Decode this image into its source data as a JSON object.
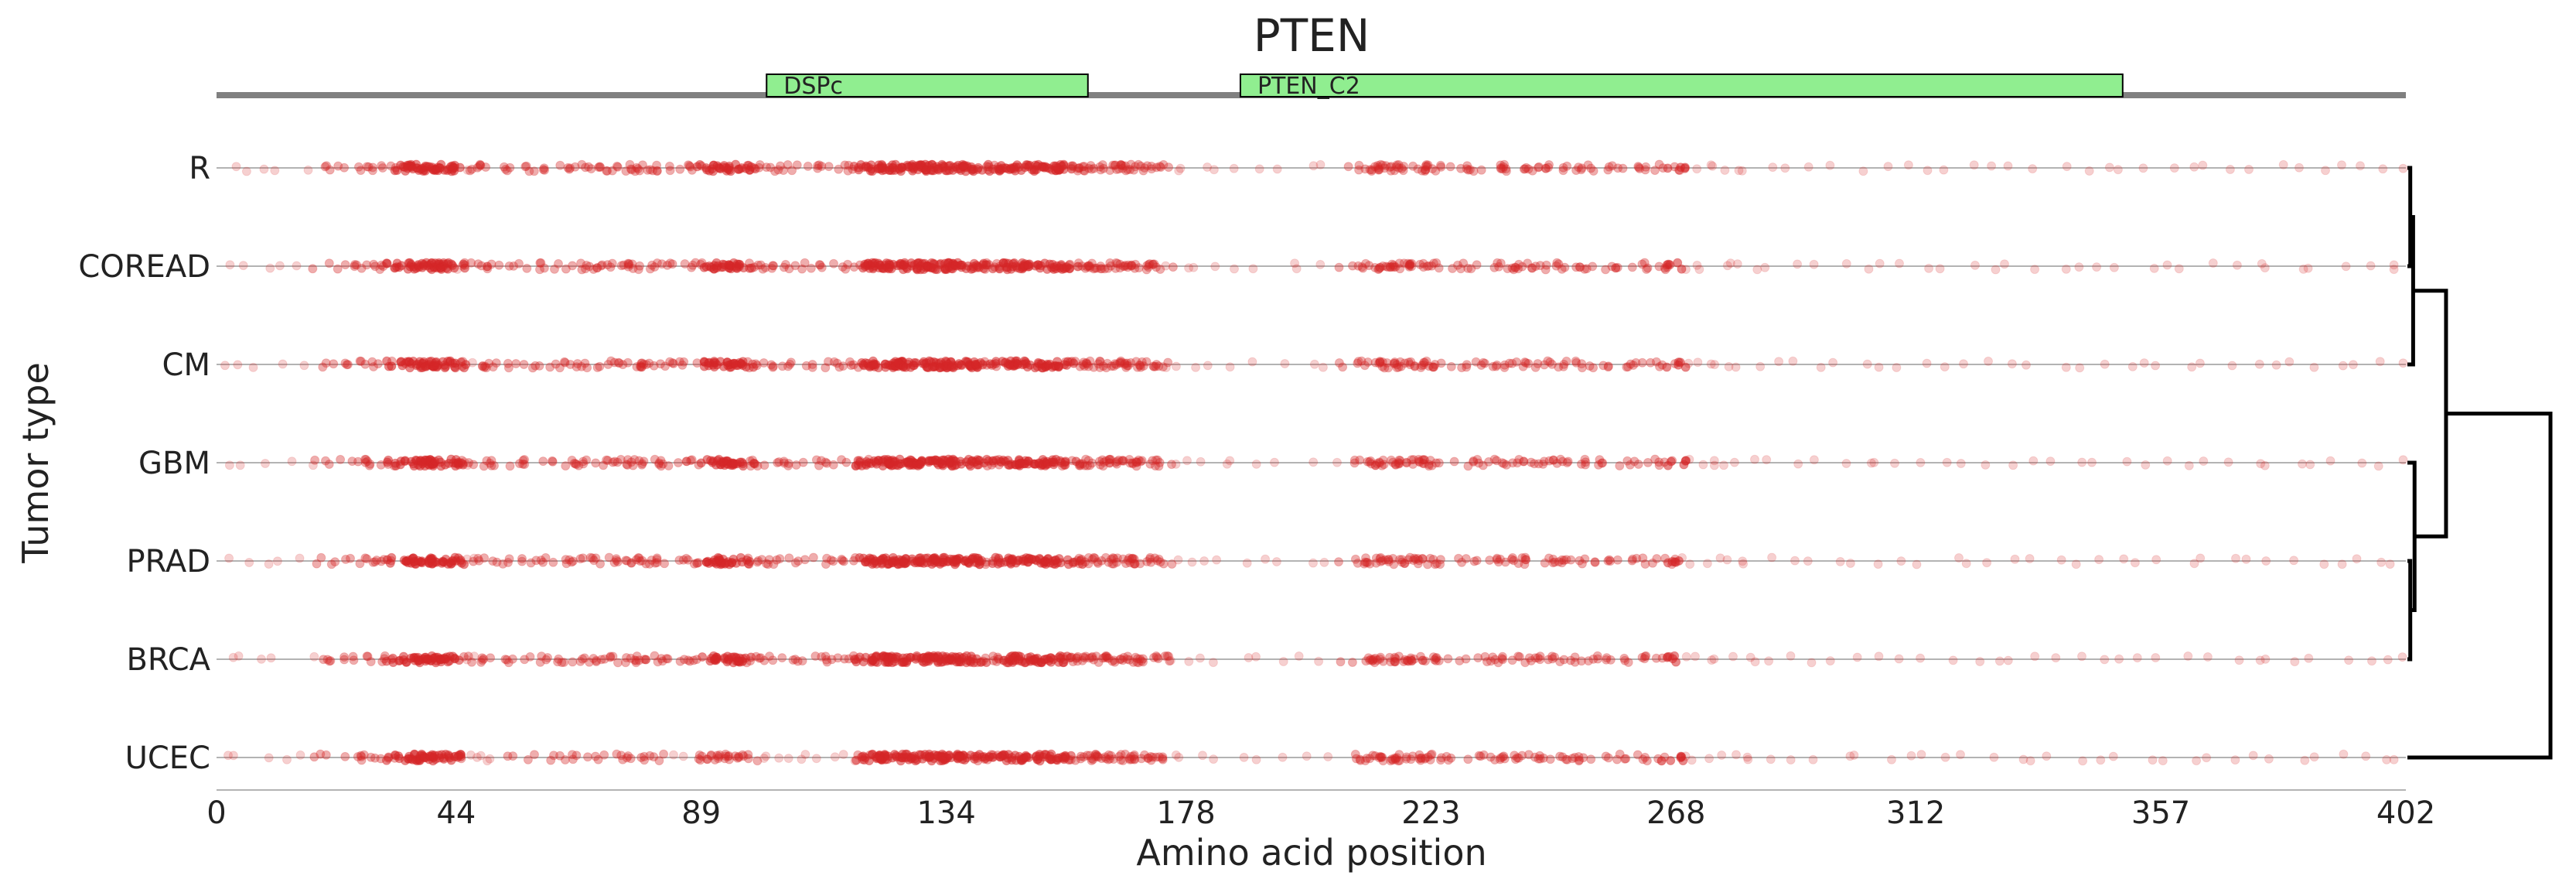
{
  "chart_data": {
    "type": "scatter",
    "title": "PTEN",
    "xlabel": "Amino acid position",
    "ylabel": "Tumor type",
    "xlim": [
      0,
      402
    ],
    "xticks": [
      0,
      44,
      89,
      134,
      178,
      223,
      268,
      312,
      357,
      402
    ],
    "grid": false,
    "domains": [
      {
        "name": "DSPc",
        "start": 101,
        "end": 160
      },
      {
        "name": "PTEN_C2",
        "start": 188,
        "end": 350
      }
    ],
    "categories": [
      "R",
      "COREAD",
      "CM",
      "GBM",
      "PRAD",
      "BRCA",
      "UCEC"
    ],
    "marker_color": "#d62728",
    "dendrogram": {
      "leaf_order": [
        "R",
        "COREAD",
        "CM",
        "GBM",
        "PRAD",
        "BRCA",
        "UCEC"
      ],
      "merges": [
        {
          "a": "R",
          "b": "COREAD",
          "height": 0.02
        },
        {
          "a": "R+COREAD",
          "b": "CM",
          "height": 0.04
        },
        {
          "a": "PRAD",
          "b": "BRCA",
          "height": 0.02
        },
        {
          "a": "GBM",
          "b": "PRAD+BRCA",
          "height": 0.05
        },
        {
          "a": "R+COREAD+CM",
          "b": "GBM+PRAD+BRCA",
          "height": 0.27
        },
        {
          "a": "all-but-UCEC",
          "b": "UCEC",
          "height": 1.0
        }
      ]
    },
    "density_profile": {
      "description_hidden": true,
      "positions": [
        3,
        5,
        8,
        12,
        16,
        19,
        22,
        25,
        27,
        29,
        31,
        33,
        35,
        36,
        37,
        38,
        39,
        40,
        41,
        42,
        43,
        44,
        45,
        46,
        47,
        48,
        49,
        50,
        52,
        55,
        58,
        61,
        64,
        66,
        68,
        70,
        72,
        74,
        76,
        77,
        78,
        80,
        82,
        84,
        86,
        88,
        90,
        91,
        92,
        93,
        94,
        95,
        96,
        97,
        98,
        99,
        100,
        102,
        104,
        106,
        108,
        110,
        112,
        114,
        116,
        118,
        119,
        120,
        121,
        122,
        123,
        124,
        125,
        126,
        127,
        128,
        129,
        130,
        131,
        132,
        133,
        134,
        135,
        136,
        137,
        138,
        139,
        140,
        141,
        142,
        143,
        144,
        145,
        146,
        147,
        148,
        149,
        150,
        151,
        152,
        153,
        154,
        155,
        156,
        157,
        158,
        159,
        160,
        161,
        162,
        163,
        164,
        165,
        166,
        167,
        168,
        169,
        170,
        171,
        172,
        173,
        174,
        176,
        178,
        180,
        184,
        188,
        192,
        196,
        200,
        204,
        208,
        211,
        212,
        213,
        214,
        215,
        216,
        217,
        218,
        219,
        220,
        221,
        222,
        223,
        225,
        228,
        230,
        232,
        234,
        236,
        238,
        240,
        242,
        244,
        246,
        248,
        250,
        252,
        254,
        256,
        258,
        260,
        262,
        264,
        266,
        268,
        270,
        272,
        274,
        276,
        278,
        280,
        282,
        286,
        290,
        294,
        298,
        302,
        306,
        310,
        314,
        318,
        322,
        326,
        330,
        334,
        338,
        342,
        346,
        350,
        354,
        358,
        362,
        366,
        370,
        374,
        378,
        382,
        386,
        390,
        394,
        398,
        401
      ],
      "weights": [
        1,
        1,
        1,
        1,
        1,
        2,
        2,
        2,
        3,
        3,
        3,
        4,
        5,
        5,
        5,
        5,
        5,
        5,
        5,
        5,
        4,
        4,
        2,
        1,
        1,
        2,
        2,
        2,
        2,
        3,
        3,
        3,
        3,
        3,
        3,
        3,
        3,
        3,
        3,
        3,
        3,
        3,
        3,
        2,
        2,
        3,
        4,
        4,
        4,
        4,
        4,
        4,
        4,
        4,
        3,
        2,
        2,
        2,
        2,
        2,
        2,
        2,
        2,
        2,
        2,
        3,
        4,
        5,
        5,
        5,
        5,
        5,
        5,
        5,
        5,
        5,
        5,
        5,
        5,
        5,
        5,
        5,
        5,
        5,
        5,
        5,
        4,
        4,
        3,
        3,
        3,
        4,
        4,
        4,
        4,
        4,
        4,
        4,
        4,
        4,
        4,
        4,
        4,
        4,
        3,
        3,
        3,
        3,
        3,
        3,
        3,
        3,
        3,
        3,
        3,
        3,
        3,
        3,
        3,
        2,
        2,
        2,
        1,
        1,
        1,
        1,
        1,
        1,
        1,
        1,
        1,
        2,
        3,
        3,
        3,
        3,
        3,
        3,
        3,
        3,
        3,
        3,
        3,
        3,
        3,
        2,
        2,
        2,
        2,
        3,
        3,
        3,
        3,
        3,
        3,
        3,
        3,
        3,
        2,
        2,
        2,
        2,
        2,
        2,
        2,
        3,
        5,
        1,
        1,
        1,
        1,
        1,
        1,
        1,
        1,
        1,
        1,
        1,
        1,
        1,
        1,
        1,
        1,
        1,
        1,
        1,
        1,
        1,
        1,
        1,
        1,
        1,
        1,
        1,
        1,
        1,
        1,
        1,
        1,
        1,
        1,
        1,
        1,
        1
      ]
    }
  }
}
